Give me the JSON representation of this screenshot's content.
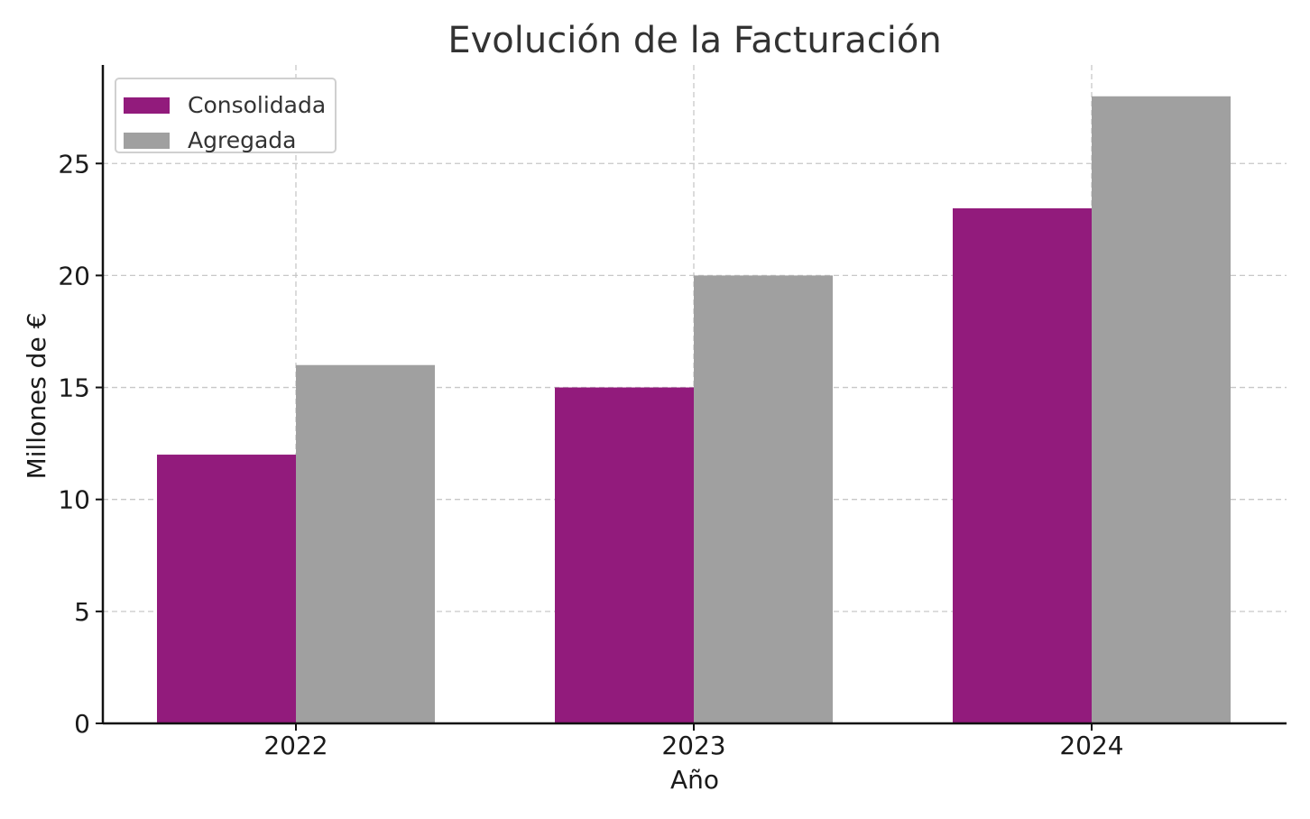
{
  "chart_data": {
    "type": "bar",
    "title": "Evolución de la Facturación",
    "xlabel": "Año",
    "ylabel": "Millones de €",
    "categories": [
      "2022",
      "2023",
      "2024"
    ],
    "series": [
      {
        "name": "Consolidada",
        "color": "#921b7c",
        "values": [
          12,
          15,
          23
        ]
      },
      {
        "name": "Agregada",
        "color": "#a0a0a0",
        "values": [
          16,
          20,
          28
        ]
      }
    ],
    "ylim": [
      0,
      29.4
    ],
    "yticks": [
      0,
      5,
      10,
      15,
      20,
      25
    ],
    "grid": true,
    "legend_position": "top-left"
  }
}
